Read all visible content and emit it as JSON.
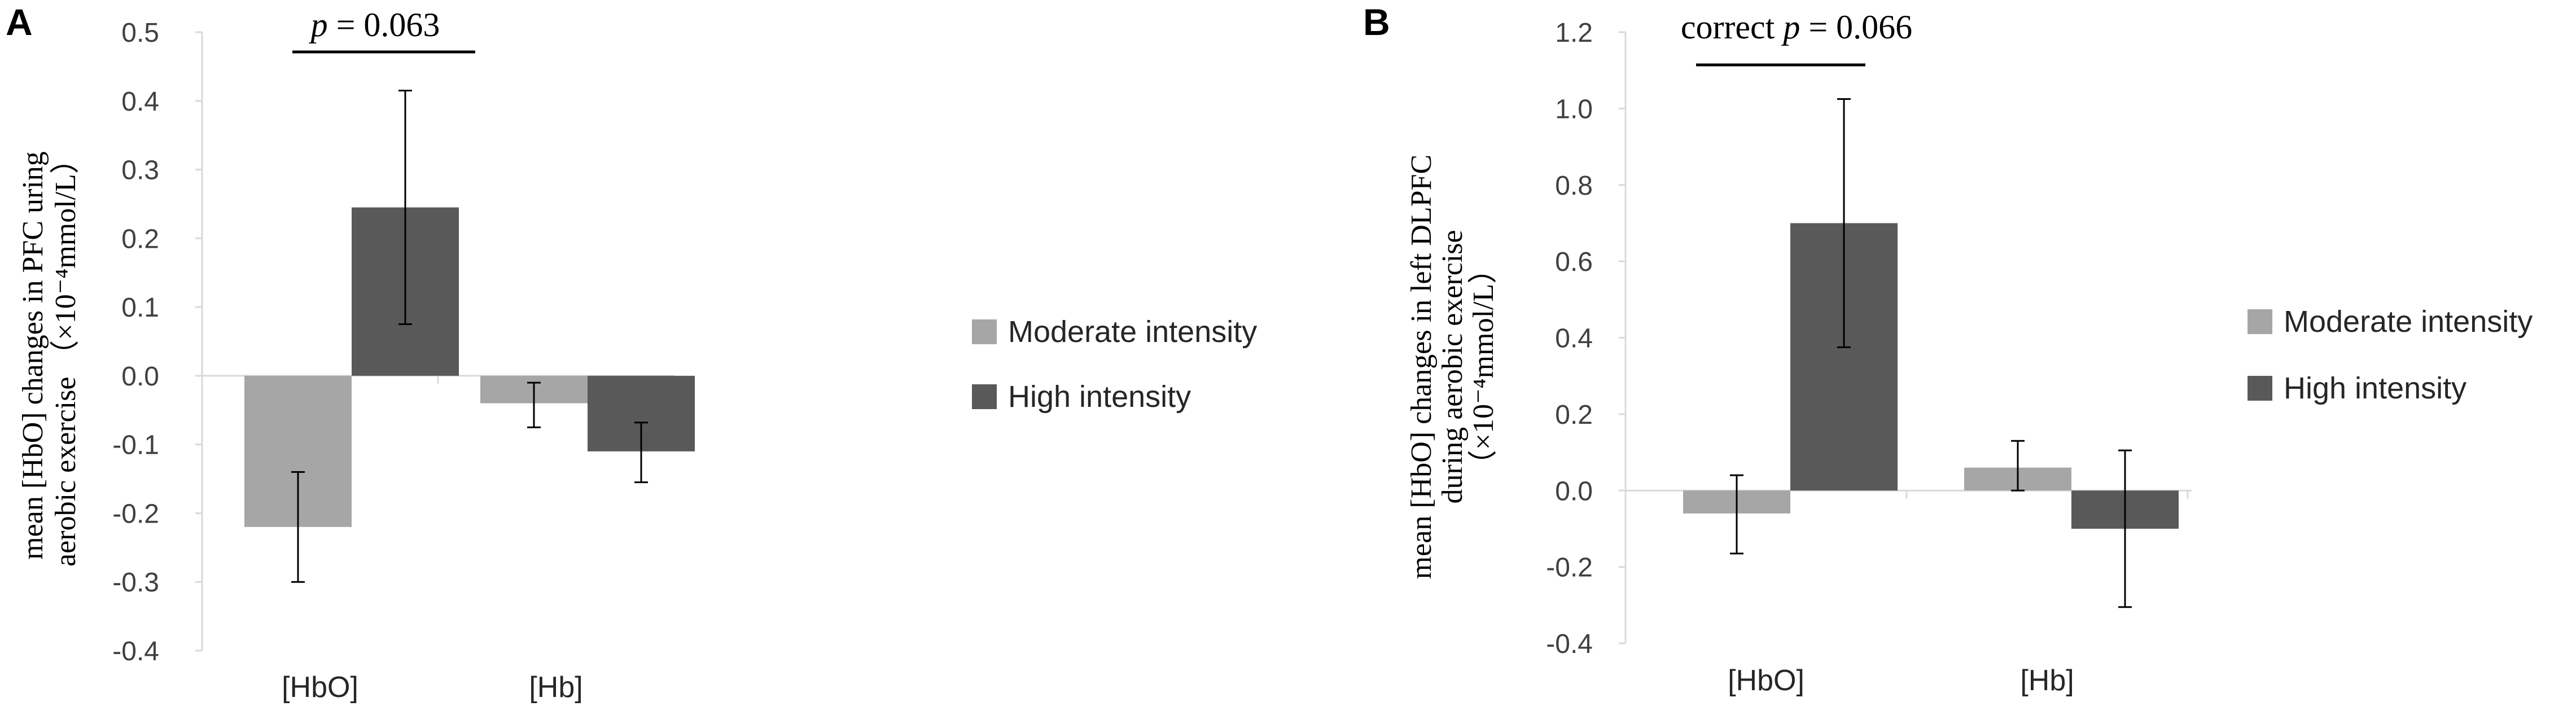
{
  "colors": {
    "moderate": "#a6a6a6",
    "high": "#595959",
    "axis": "#d9d9d9"
  },
  "chart_data": [
    {
      "panel": "A",
      "type": "bar",
      "categories": [
        "[HbO]",
        "[Hb]"
      ],
      "series": [
        {
          "name": "Moderate intensity",
          "values": [
            -0.22,
            -0.04
          ],
          "error_low": [
            -0.3,
            -0.075
          ],
          "error_high": [
            -0.14,
            -0.01
          ]
        },
        {
          "name": "High intensity",
          "values": [
            0.245,
            -0.11
          ],
          "error_low": [
            0.075,
            -0.155
          ],
          "error_high": [
            0.415,
            -0.068
          ]
        }
      ],
      "ylim": [
        -0.4,
        0.5
      ],
      "yticks": [
        "0.5",
        "0.4",
        "0.3",
        "0.2",
        "0.1",
        "0.0",
        "-0.1",
        "-0.2",
        "-0.3",
        "-0.4"
      ],
      "ylabel_line1": "mean [HbO] changes in PFC uring",
      "ylabel_line2": "aerobic exercise （×10⁻⁴mmol/L）",
      "annotation_prefix": "",
      "annotation_p": "p",
      "annotation_value": " = 0.063",
      "legend": [
        "Moderate intensity",
        "High intensity"
      ],
      "legend_position": "right",
      "grid": false
    },
    {
      "panel": "B",
      "type": "bar",
      "categories": [
        "[HbO]",
        "[Hb]"
      ],
      "series": [
        {
          "name": "Moderate intensity",
          "values": [
            -0.06,
            0.06
          ],
          "error_low": [
            -0.165,
            0.0
          ],
          "error_high": [
            0.04,
            0.13
          ]
        },
        {
          "name": "High intensity",
          "values": [
            0.7,
            -0.1
          ],
          "error_low": [
            0.375,
            -0.305
          ],
          "error_high": [
            1.025,
            0.105
          ]
        }
      ],
      "ylim": [
        -0.4,
        1.2
      ],
      "yticks": [
        "1.2",
        "1.0",
        "0.8",
        "0.6",
        "0.4",
        "0.2",
        "0.0",
        "-0.2",
        "-0.4"
      ],
      "ylabel_line1": "mean [HbO] changes in left DLPFC",
      "ylabel_line2": "during aerobic exercise",
      "ylabel_line3": "（×10⁻⁴mmol/L）",
      "annotation_prefix": "correct ",
      "annotation_p": "p",
      "annotation_value": " = 0.066",
      "legend": [
        "Moderate intensity",
        "High intensity"
      ],
      "legend_position": "right",
      "grid": false
    }
  ]
}
